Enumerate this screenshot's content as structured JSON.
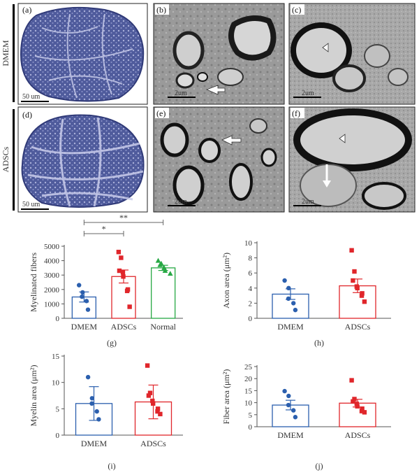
{
  "figure": {
    "row_labels": {
      "top": "DMEM",
      "bottom": "ADSCs"
    },
    "panel_letters": [
      "(a)",
      "(b)",
      "(c)",
      "(d)",
      "(e)",
      "(f)",
      "(g)",
      "(h)",
      "(i)",
      "(j)"
    ],
    "scale_bars": {
      "a": "50 um",
      "b": "2um",
      "c": "2um",
      "d": "50 um",
      "e": "2um",
      "f": "2um"
    },
    "colors": {
      "dmem": "#2b5fae",
      "adscs": "#e0262b",
      "normal": "#27a844",
      "tissue": "#5a66a8",
      "tissue_light": "#b8bde0"
    }
  },
  "chart_data": [
    {
      "id": "g",
      "type": "bar",
      "ylabel": "Myelinated fibers",
      "categories": [
        "DMEM",
        "ADSCs",
        "Normal"
      ],
      "values": [
        1480,
        2900,
        3500
      ],
      "errors": [
        350,
        450,
        180
      ],
      "ylim": [
        0,
        5000
      ],
      "yticks": [
        0,
        1000,
        2000,
        3000,
        4000,
        5000
      ],
      "points": [
        [
          2300,
          1800,
          1500,
          1200,
          600
        ],
        [
          4600,
          4200,
          3300,
          3200,
          2900,
          2000,
          1900,
          800
        ],
        [
          4000,
          3800,
          3700,
          3500,
          3300,
          3100
        ]
      ],
      "significance": [
        {
          "from": 0,
          "to": 1,
          "label": "*"
        },
        {
          "from": 0,
          "to": 2,
          "label": "**"
        }
      ]
    },
    {
      "id": "h",
      "type": "bar",
      "ylabel": "Axon area (μm²)",
      "categories": [
        "DMEM",
        "ADSCs"
      ],
      "values": [
        3.2,
        4.3
      ],
      "errors": [
        0.7,
        0.9
      ],
      "ylim": [
        0,
        10
      ],
      "yticks": [
        0,
        2,
        4,
        6,
        8,
        10
      ],
      "points": [
        [
          5.0,
          4.0,
          2.6,
          2.0,
          1.1
        ],
        [
          9.0,
          6.2,
          5.0,
          4.2,
          4.0,
          3.3,
          3.0,
          2.2
        ]
      ]
    },
    {
      "id": "i",
      "type": "bar",
      "ylabel": "Myelin area (μm²)",
      "categories": [
        "DMEM",
        "ADSCs"
      ],
      "values": [
        6.0,
        6.3
      ],
      "errors": [
        3.2,
        3.2
      ],
      "ylim": [
        0,
        15
      ],
      "yticks": [
        0,
        5,
        10,
        15
      ],
      "points": [
        [
          11.0,
          7.0,
          6.0,
          4.5,
          3.0
        ],
        [
          13.2,
          8.0,
          7.5,
          6.5,
          6.0,
          5.0,
          4.5,
          4.0
        ]
      ]
    },
    {
      "id": "j",
      "type": "bar",
      "ylabel": "Fiber area (μm²)",
      "categories": [
        "DMEM",
        "ADSCs"
      ],
      "values": [
        9.0,
        9.8
      ],
      "errors": [
        2.0,
        1.6
      ],
      "ylim": [
        0,
        25
      ],
      "yticks": [
        0,
        5,
        10,
        15,
        20,
        25
      ],
      "points": [
        [
          14.8,
          12.8,
          9.0,
          6.8,
          4.0
        ],
        [
          19.3,
          11.5,
          10.5,
          9.5,
          8.5,
          7.5,
          6.5,
          6.0
        ]
      ]
    }
  ]
}
